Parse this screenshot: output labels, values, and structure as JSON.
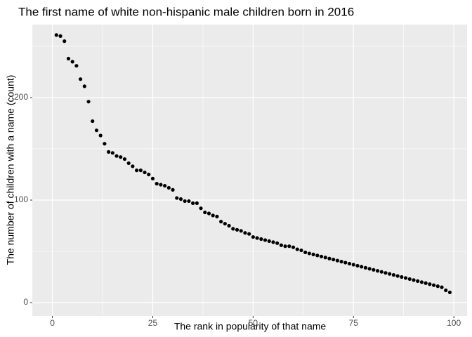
{
  "chart_data": {
    "type": "scatter",
    "title": "The first name of white non-hispanic male children born in 2016",
    "x_label": "The rank in popularity of that name",
    "y_label": "The number of children with a name (count)",
    "x": [
      1,
      2,
      3,
      4,
      5,
      6,
      7,
      8,
      9,
      10,
      11,
      12,
      13,
      14,
      15,
      16,
      17,
      18,
      19,
      20,
      21,
      22,
      23,
      24,
      25,
      26,
      27,
      28,
      29,
      30,
      31,
      32,
      33,
      34,
      35,
      36,
      37,
      38,
      39,
      40,
      41,
      42,
      43,
      44,
      45,
      46,
      47,
      48,
      49,
      50,
      51,
      52,
      53,
      54,
      55,
      56,
      57,
      58,
      59,
      60,
      61,
      62,
      63,
      64,
      65,
      66,
      67,
      68,
      69,
      70,
      71,
      72,
      73,
      74,
      75,
      76,
      77,
      78,
      79,
      80,
      81,
      82,
      83,
      84,
      85,
      86,
      87,
      88,
      89,
      90,
      91,
      92,
      93,
      94,
      95,
      96,
      97,
      98,
      99
    ],
    "values": [
      261,
      260,
      255,
      238,
      235,
      231,
      218,
      211,
      196,
      177,
      168,
      163,
      155,
      147,
      146,
      143,
      142,
      140,
      136,
      133,
      129,
      129,
      127,
      125,
      121,
      116,
      115,
      114,
      112,
      110,
      102,
      101,
      99,
      99,
      97,
      97,
      92,
      88,
      87,
      85,
      84,
      79,
      77,
      75,
      72,
      71,
      70,
      68,
      67,
      64,
      63,
      62,
      61,
      60,
      59,
      58,
      56,
      55,
      55,
      54,
      52,
      51,
      49,
      48,
      47,
      46,
      45,
      44,
      43,
      42,
      41,
      40,
      39,
      38,
      37,
      36,
      35,
      34,
      33,
      32,
      31,
      30,
      29,
      28,
      27,
      26,
      25,
      24,
      23,
      22,
      21,
      20,
      19,
      18,
      17,
      16,
      15,
      12,
      10
    ],
    "color": "#000000",
    "xlim": [
      -5,
      103.3
    ],
    "ylim": [
      -13,
      271.2
    ],
    "xticks": [
      0,
      25,
      50,
      75,
      100
    ],
    "yticks": [
      0,
      100,
      200
    ],
    "minor_xticks": [
      12.5,
      37.5,
      62.5,
      87.5
    ],
    "minor_yticks": [
      50,
      150,
      250
    ],
    "grid": true
  }
}
